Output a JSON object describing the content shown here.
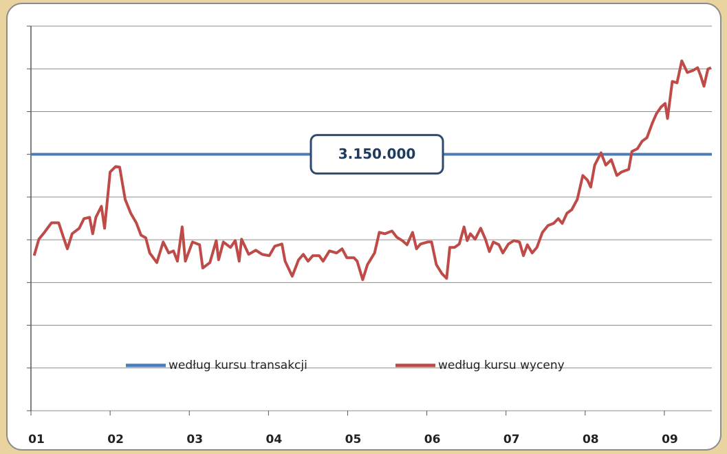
{
  "chart_data": {
    "type": "line",
    "annotation": "3.150.000",
    "xlim": [
      1,
      9.6
    ],
    "xticks": [
      {
        "value": 1,
        "label": "01"
      },
      {
        "value": 2,
        "label": "02"
      },
      {
        "value": 3,
        "label": "03"
      },
      {
        "value": 4,
        "label": "04"
      },
      {
        "value": 5,
        "label": "05"
      },
      {
        "value": 6,
        "label": "06"
      },
      {
        "value": 7,
        "label": "07"
      },
      {
        "value": 8,
        "label": "08"
      },
      {
        "value": 9,
        "label": "09"
      }
    ],
    "ylim": [
      0,
      4725000
    ],
    "yticks": [
      0,
      525000,
      1050000,
      1575000,
      2100000,
      2625000,
      3150000,
      3675000,
      4200000,
      4725000
    ],
    "grid": true,
    "legend": "bottom",
    "series": [
      {
        "name": "według kursu transakcji",
        "color": "#4a7ebb",
        "x": [
          1,
          9.6
        ],
        "values": [
          3150000,
          3150000
        ]
      },
      {
        "name": "według kursu wyceny",
        "color": "#be4b48",
        "x": [
          1.04,
          1.1,
          1.17,
          1.26,
          1.35,
          1.41,
          1.46,
          1.52,
          1.61,
          1.67,
          1.74,
          1.78,
          1.82,
          1.89,
          1.93,
          2.0,
          2.07,
          2.12,
          2.19,
          2.26,
          2.33,
          2.39,
          2.45,
          2.5,
          2.59,
          2.67,
          2.74,
          2.8,
          2.85,
          2.91,
          2.95,
          3.04,
          3.13,
          3.17,
          3.26,
          3.34,
          3.37,
          3.43,
          3.52,
          3.58,
          3.63,
          3.66,
          3.75,
          3.84,
          3.92,
          4.01,
          4.08,
          4.17,
          4.21,
          4.3,
          4.38,
          4.44,
          4.5,
          4.56,
          4.64,
          4.69,
          4.77,
          4.86,
          4.93,
          4.99,
          5.08,
          5.12,
          5.19,
          5.25,
          5.34,
          5.4,
          5.47,
          5.56,
          5.62,
          5.69,
          5.75,
          5.82,
          5.87,
          5.92,
          6.01,
          6.06,
          6.12,
          6.19,
          6.25,
          6.29,
          6.35,
          6.41,
          6.47,
          6.51,
          6.55,
          6.61,
          6.68,
          6.74,
          6.79,
          6.84,
          6.91,
          6.96,
          7.03,
          7.1,
          7.17,
          7.22,
          7.27,
          7.33,
          7.39,
          7.46,
          7.53,
          7.6,
          7.66,
          7.71,
          7.77,
          7.83,
          7.9,
          7.97,
          8.03,
          8.07,
          8.12,
          8.2,
          8.26,
          8.33,
          8.4,
          8.46,
          8.55,
          8.59,
          8.66,
          8.72,
          8.78,
          8.85,
          8.9,
          8.96,
          9.01,
          9.04,
          9.1,
          9.16,
          9.22,
          9.29,
          9.36,
          9.42,
          9.46,
          9.5,
          9.55,
          9.59
        ],
        "values": [
          1905000,
          2107000,
          2191000,
          2309000,
          2309000,
          2132000,
          1989000,
          2174000,
          2242000,
          2360000,
          2376000,
          2174000,
          2376000,
          2511000,
          2242000,
          2933000,
          3000000,
          2992000,
          2596000,
          2427000,
          2309000,
          2157000,
          2124000,
          1938000,
          1820000,
          2073000,
          1938000,
          1963000,
          1837000,
          2258000,
          1837000,
          2073000,
          2039000,
          1753000,
          1820000,
          2090000,
          1854000,
          2073000,
          2006000,
          2090000,
          1837000,
          2107000,
          1921000,
          1972000,
          1921000,
          1905000,
          2022000,
          2048000,
          1837000,
          1652000,
          1854000,
          1921000,
          1837000,
          1905000,
          1905000,
          1837000,
          1963000,
          1938000,
          1989000,
          1879000,
          1879000,
          1837000,
          1610000,
          1795000,
          1938000,
          2191000,
          2174000,
          2208000,
          2132000,
          2090000,
          2039000,
          2191000,
          1989000,
          2048000,
          2073000,
          2073000,
          1795000,
          1685000,
          1626000,
          2006000,
          2006000,
          2048000,
          2258000,
          2090000,
          2174000,
          2107000,
          2242000,
          2107000,
          1955000,
          2073000,
          2039000,
          1938000,
          2048000,
          2090000,
          2073000,
          1905000,
          2039000,
          1938000,
          2006000,
          2191000,
          2275000,
          2301000,
          2360000,
          2301000,
          2427000,
          2469000,
          2596000,
          2890000,
          2831000,
          2747000,
          3017000,
          3169000,
          3017000,
          3084000,
          2890000,
          2933000,
          2966000,
          3185000,
          3219000,
          3312000,
          3354000,
          3539000,
          3649000,
          3733000,
          3775000,
          3590000,
          4045000,
          4028000,
          4298000,
          4155000,
          4180000,
          4214000,
          4112000,
          3986000,
          4197000,
          4214000
        ]
      }
    ]
  }
}
